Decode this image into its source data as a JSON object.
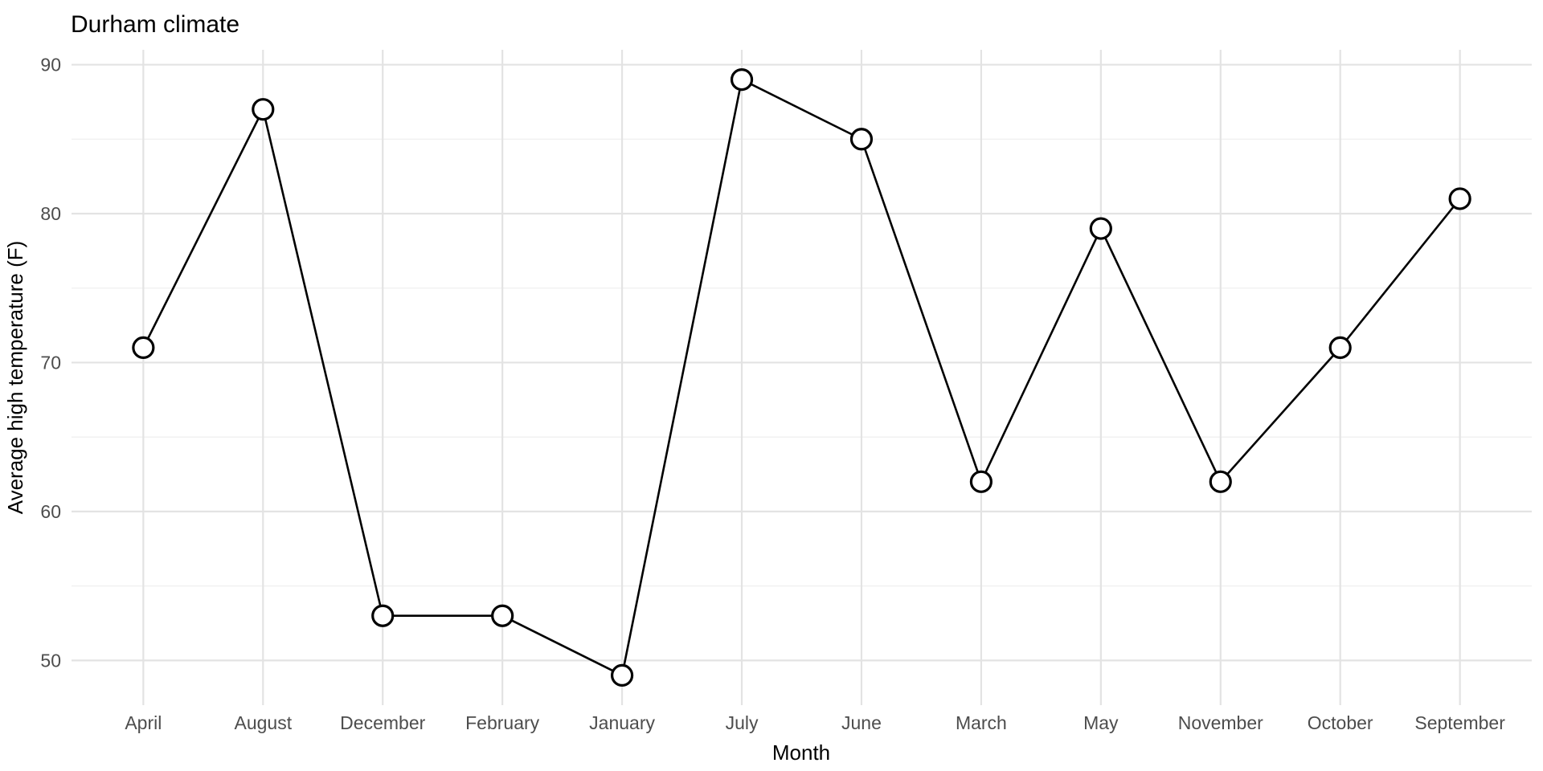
{
  "chart_data": {
    "type": "line",
    "title": "Durham climate",
    "xlabel": "Month",
    "ylabel": "Average high temperature (F)",
    "categories": [
      "April",
      "August",
      "December",
      "February",
      "January",
      "July",
      "June",
      "March",
      "May",
      "November",
      "October",
      "September"
    ],
    "values": [
      71,
      87,
      53,
      53,
      49,
      89,
      85,
      62,
      79,
      62,
      71,
      81
    ],
    "series": [
      {
        "name": "Average high temperature (F)",
        "values": [
          71,
          87,
          53,
          53,
          49,
          89,
          85,
          62,
          79,
          62,
          71,
          81
        ]
      }
    ],
    "y_major_ticks": [
      50,
      60,
      70,
      80,
      90
    ],
    "y_minor_ticks": [
      55,
      65,
      75,
      85
    ],
    "ylim": [
      47,
      91
    ],
    "grid": "on",
    "legend": "none",
    "marker": "open-circle",
    "colors": {
      "background": "#FFFFFF",
      "line": "#000000",
      "point_fill": "#FFFFFF",
      "point_stroke": "#000000",
      "major_grid": "#E3E3E3",
      "minor_grid": "#EFEFEF",
      "tick_label": "#4D4D4D",
      "title": "#000000",
      "axis_title": "#000000"
    }
  }
}
